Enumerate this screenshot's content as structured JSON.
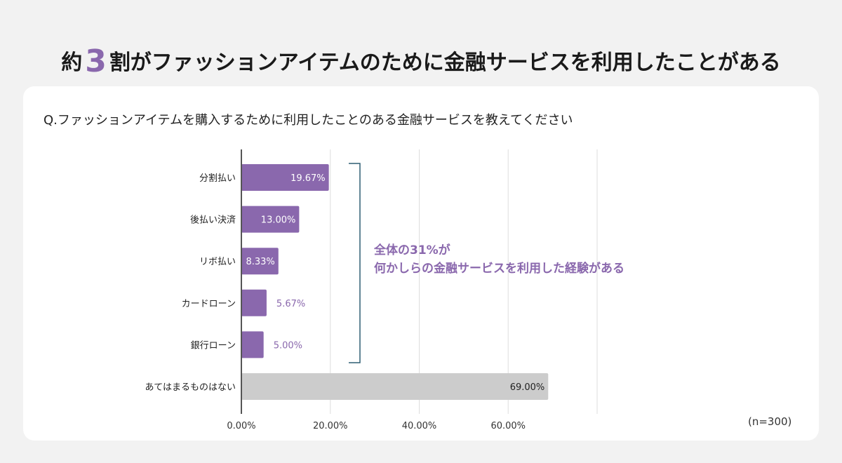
{
  "title": {
    "prefix": "約",
    "highlight": "3",
    "suffix": "割がファッションアイテムのために金融サービスを利用したことがある"
  },
  "question": "Q.ファッションアイテムを購入するために利用したことのある金融サービスを教えてください",
  "annotation": {
    "line1": "全体の31%が",
    "line2": "何かしらの金融サービスを利用した経験がある"
  },
  "sample_size": "(n=300)",
  "colors": {
    "accent": "#8a68ad",
    "none_bar": "#cccccc",
    "bracket": "#2f5f73",
    "background": "#f2f2f2"
  },
  "chart_data": {
    "type": "bar",
    "orientation": "horizontal",
    "categories": [
      "分割払い",
      "後払い決済",
      "リボ払い",
      "カードローン",
      "銀行ローン",
      "あてはまるものはない"
    ],
    "values": [
      19.67,
      13.0,
      8.33,
      5.67,
      5.0,
      69.0
    ],
    "data_labels": [
      "19.67%",
      "13.00%",
      "8.33%",
      "5.67%",
      "5.00%",
      "69.00%"
    ],
    "xlim": [
      0,
      80
    ],
    "xticks": [
      0,
      20,
      40,
      60,
      80
    ],
    "xtick_labels": [
      "0.00%",
      "20.00%",
      "40.00%",
      "60.00%",
      ""
    ],
    "grid": true,
    "legend": "none"
  }
}
